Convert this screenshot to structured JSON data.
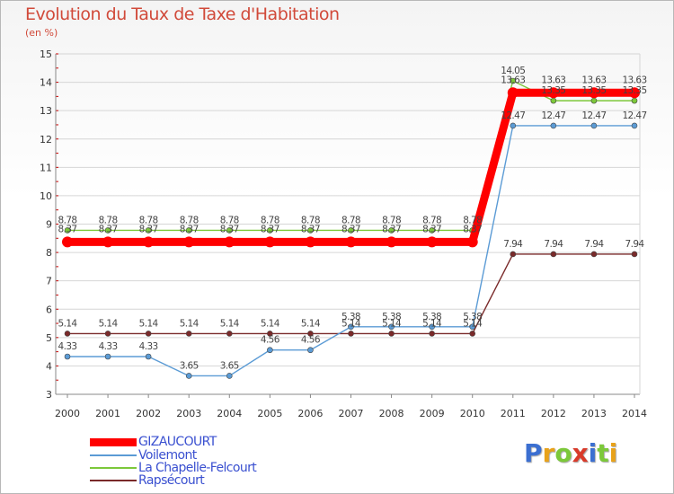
{
  "chart_data": {
    "type": "line",
    "title": "Evolution du Taux de Taxe d'Habitation",
    "subtitle": "(en %)",
    "ylim": [
      3,
      15
    ],
    "yticks": [
      "3",
      "4",
      "5",
      "6",
      "7",
      "8",
      "9",
      "10",
      "11",
      "12",
      "13",
      "14",
      "15"
    ],
    "categories": [
      "2000",
      "2001",
      "2002",
      "2003",
      "2004",
      "2005",
      "2006",
      "2007",
      "2008",
      "2009",
      "2010",
      "2011",
      "2012",
      "2013",
      "2014"
    ],
    "series": [
      {
        "name": "GIZAUCOURT",
        "color": "#ff0000",
        "values": [
          8.37,
          8.37,
          8.37,
          8.37,
          8.37,
          8.37,
          8.37,
          8.37,
          8.37,
          8.37,
          8.37,
          13.63,
          13.63,
          13.63,
          13.63
        ],
        "labels": [
          "8.37",
          "8.37",
          "8.37",
          "8.37",
          "8.37",
          "8.37",
          "8.37",
          "8.37",
          "8.37",
          "8.37",
          "8.37",
          "13.63",
          "13.63",
          "13.63",
          "13.63"
        ]
      },
      {
        "name": "Voilemont",
        "color": "#5b9bd5",
        "values": [
          4.33,
          4.33,
          4.33,
          3.65,
          3.65,
          4.56,
          4.56,
          5.38,
          5.38,
          5.38,
          5.38,
          12.47,
          12.47,
          12.47,
          12.47
        ],
        "labels": [
          "4.33",
          "4.33",
          "4.33",
          "3.65",
          "3.65",
          "4.56",
          "4.56",
          "5.38",
          "5.38",
          "5.38",
          "5.38",
          "12.47",
          "12.47",
          "12.47",
          "12.47"
        ]
      },
      {
        "name": "La Chapelle-Felcourt",
        "color": "#7cc83a",
        "values": [
          8.78,
          8.78,
          8.78,
          8.78,
          8.78,
          8.78,
          8.78,
          8.78,
          8.78,
          8.78,
          8.78,
          14.05,
          13.35,
          13.35,
          13.35
        ],
        "labels": [
          "8.78",
          "8.78",
          "8.78",
          "8.78",
          "8.78",
          "8.78",
          "8.78",
          "8.78",
          "8.78",
          "8.78",
          "8.78",
          "14.05",
          "13.35",
          "13.35",
          "13.35"
        ]
      },
      {
        "name": "Rapsécourt",
        "color": "#7a2a2a",
        "values": [
          5.14,
          5.14,
          5.14,
          5.14,
          5.14,
          5.14,
          5.14,
          5.14,
          5.14,
          5.14,
          5.14,
          7.94,
          7.94,
          7.94,
          7.94
        ],
        "labels": [
          "5.14",
          "5.14",
          "5.14",
          "5.14",
          "5.14",
          "5.14",
          "5.14",
          "5.14",
          "5.14",
          "5.14",
          "5.14",
          "7.94",
          "7.94",
          "7.94",
          "7.94"
        ]
      }
    ]
  },
  "logo": {
    "letters": [
      "P",
      "r",
      "o",
      "x",
      "i",
      "t",
      "i"
    ],
    "colors": [
      "#3b6fd1",
      "#e8a21a",
      "#7cc83a",
      "#d83a2a",
      "#3b6fd1",
      "#7cc83a",
      "#e8a21a"
    ]
  }
}
